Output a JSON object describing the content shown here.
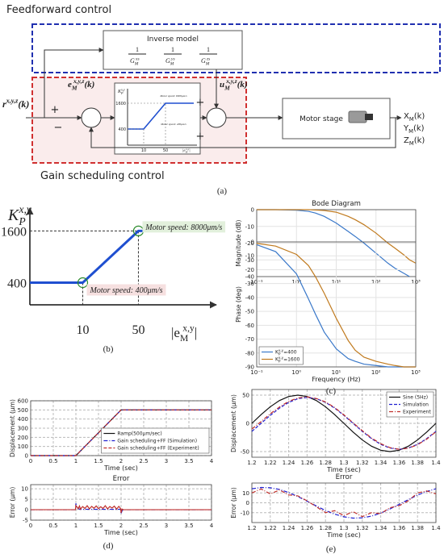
{
  "figure": {
    "panel_labels": [
      "(a)",
      "(b)",
      "(c)",
      "(d)",
      "(e)"
    ]
  },
  "diagram": {
    "feedforward": "Feedforward control",
    "inverse_model": "Inverse model",
    "inverse_terms": [
      {
        "num": "1",
        "base": "G",
        "sub": "M",
        "sup": "xs"
      },
      {
        "num": "1",
        "base": "G",
        "sub": "M",
        "sup": "ys"
      },
      {
        "num": "1",
        "base": "G",
        "sub": "M",
        "sup": "zs"
      }
    ],
    "gain_scheduling": "Gain scheduling control",
    "input": {
      "base": "r",
      "sup": "x,y,z",
      "tail": "(k)"
    },
    "error": {
      "base": "e",
      "sub": "M",
      "sup": "x,y,z",
      "tail": "(k)"
    },
    "control": {
      "base": "u",
      "sub": "M",
      "sup": "x,y,z",
      "tail": "(k)"
    },
    "signs": [
      "+",
      "−",
      "+",
      "+"
    ],
    "inset": {
      "ylabel": {
        "base": "K",
        "sub": "P",
        "sup": "x,y"
      },
      "yticks": [
        "1600",
        "400"
      ],
      "xticks": [
        "10",
        "50"
      ],
      "xlabel": {
        "base": "|e",
        "sub": "M",
        "sup": "x,y",
        "tail": "|"
      },
      "notes": [
        "Motor speed: 8000μm/s",
        "Motor speed: 400μm/s"
      ]
    },
    "plant": "Motor stage",
    "outputs": [
      {
        "base": "X",
        "sub": "M",
        "tail": "(k)"
      },
      {
        "base": "Y",
        "sub": "M",
        "tail": "(k)"
      },
      {
        "base": "Z",
        "sub": "M",
        "tail": "(k)"
      }
    ]
  },
  "chart_data": [
    {
      "type": "line",
      "frame": false,
      "color": "#1f4fd0",
      "x": [
        -28,
        10,
        50,
        75
      ],
      "values": [
        400,
        400,
        1600,
        1600
      ],
      "xlim": [
        -28,
        106
      ],
      "ylim": [
        -114,
        2130
      ],
      "xticks": [
        10,
        50
      ],
      "yticks": [
        400,
        1600
      ],
      "xlabel": {
        "base": "|e",
        "sub": "M",
        "sup": "x,y",
        "tail": "|"
      },
      "ylabel": {
        "base": "K",
        "sub": "P",
        "sup": "x,y"
      },
      "annotations": [
        {
          "text": "Motor speed: 8000μm/s",
          "x": 50,
          "y": 1600,
          "color": "#e2f0dc"
        },
        {
          "text": "Motor speed: 400μm/s",
          "x": 10,
          "y": 400,
          "color": "#f6e0e0"
        }
      ]
    },
    {
      "type": "line",
      "title": "Bode Diagram",
      "ylabel": "Magnitude (dB)",
      "xlog": true,
      "grid": true,
      "grid_style": "solid",
      "x": [
        0.1,
        0.3,
        1,
        2,
        3,
        5,
        10,
        20,
        30,
        50,
        100,
        200,
        300,
        500,
        700,
        1000
      ],
      "xlim": [
        0.1,
        1000
      ],
      "ylim": [
        -40,
        0
      ],
      "yticks": [
        -40,
        -30,
        -20,
        -10,
        0
      ],
      "xticks": [
        {
          "value": 0.1,
          "label": "10⁻¹"
        },
        {
          "value": 1,
          "label": "10⁰"
        },
        {
          "value": 10,
          "label": "10¹"
        },
        {
          "value": 100,
          "label": "10²"
        },
        {
          "value": 1000,
          "label": "10³"
        }
      ],
      "series": [
        {
          "name": {
            "base": "K",
            "sub": "P",
            "sup": "x,y",
            "tail": "=400"
          },
          "color": "#3a78c9",
          "style": "solid",
          "values": [
            0,
            0,
            -0.3,
            -1,
            -2,
            -4,
            -8,
            -13,
            -16,
            -20,
            -26,
            -32,
            -35,
            -38,
            -40,
            null
          ]
        },
        {
          "name": {
            "base": "K",
            "sub": "P",
            "sup": "x,y",
            "tail": "=1600"
          },
          "color": "#c07a1e",
          "style": "solid",
          "values": [
            0,
            0,
            0,
            0,
            -0.2,
            -0.5,
            -1.5,
            -4,
            -6,
            -9,
            -14,
            -20,
            -23,
            -27,
            -30,
            -32
          ]
        }
      ]
    },
    {
      "type": "line",
      "ylabel": "Phase (deg)",
      "xlabel": "Frequency  (Hz)",
      "xlog": true,
      "grid": true,
      "grid_style": "solid",
      "legend": "lower left",
      "x": [
        0.1,
        0.3,
        1,
        2,
        3,
        5,
        10,
        20,
        30,
        50,
        100,
        200,
        300,
        500,
        700,
        1000
      ],
      "xlim": [
        0.1,
        1000
      ],
      "ylim": [
        -90,
        0
      ],
      "yticks": [
        -90,
        -80,
        -70,
        -60,
        -50,
        -40,
        -30,
        -20,
        -10,
        0
      ],
      "xticks": [
        {
          "value": 0.1,
          "label": "10⁻¹"
        },
        {
          "value": 1,
          "label": "10⁰"
        },
        {
          "value": 10,
          "label": "10¹"
        },
        {
          "value": 100,
          "label": "10²"
        },
        {
          "value": 1000,
          "label": "10³"
        }
      ],
      "series": [
        {
          "name": {
            "base": "K",
            "sub": "P",
            "sup": "x,y",
            "tail": "=400"
          },
          "color": "#3a78c9",
          "style": "solid",
          "values": [
            -2,
            -7,
            -23,
            -41,
            -52,
            -65,
            -77,
            -84,
            -86,
            -88,
            -89,
            -90,
            -90,
            -90,
            -90,
            -90
          ]
        },
        {
          "name": {
            "base": "K",
            "sub": "P",
            "sup": "x,y",
            "tail": "=1600"
          },
          "color": "#c07a1e",
          "style": "solid",
          "values": [
            -1,
            -3,
            -9,
            -17,
            -25,
            -37,
            -55,
            -71,
            -78,
            -83,
            -86,
            -88,
            -89,
            -90,
            -90,
            -90
          ]
        }
      ]
    },
    {
      "type": "line",
      "ylabel": "Displacement (μm)",
      "xlabel": "Time (sec)",
      "grid": true,
      "grid_style": "dashed",
      "legend": "lower right",
      "x": [
        0,
        1,
        2,
        4
      ],
      "xlim": [
        0,
        4
      ],
      "ylim": [
        0,
        600
      ],
      "xticks": [
        0,
        0.5,
        1,
        1.5,
        2,
        2.5,
        3,
        3.5,
        4
      ],
      "yticks": [
        0,
        100,
        200,
        300,
        400,
        500,
        600
      ],
      "series": [
        {
          "name": "Ramp(500μm/sec)",
          "color": "#111111",
          "style": "solid",
          "values": [
            0,
            0,
            500,
            500
          ]
        },
        {
          "name": "Gain scheduling+FF (Simulation)",
          "color": "#2020d0",
          "style": "dashdot",
          "values": [
            0,
            0,
            500,
            500
          ]
        },
        {
          "name": "Gain scheduling+FF (Experiment)",
          "color": "#c0302c",
          "style": "dashed",
          "values": [
            0,
            0,
            500,
            500
          ]
        }
      ]
    },
    {
      "type": "line",
      "title": "Error",
      "ylabel": "Error (μm)",
      "xlabel": "Time (sec)",
      "grid": true,
      "grid_style": "dashed",
      "x": [
        0,
        0.99,
        1,
        1.02,
        1.05,
        1.08,
        1.1,
        1.15,
        1.2,
        1.25,
        1.3,
        1.35,
        1.4,
        1.45,
        1.5,
        1.55,
        1.6,
        1.65,
        1.7,
        1.75,
        1.8,
        1.85,
        1.9,
        1.95,
        1.99,
        2,
        2.02,
        2.05,
        4
      ],
      "xlim": [
        0,
        4
      ],
      "ylim": [
        -5,
        12
      ],
      "xticks": [
        0,
        0.5,
        1,
        1.5,
        2,
        2.5,
        3,
        3.5,
        4
      ],
      "yticks": [
        -5,
        0,
        5,
        10
      ],
      "series": [
        {
          "name": "Gain scheduling+FF (Simulation)",
          "color": "#2020d0",
          "style": "dashdot",
          "values": [
            0,
            0,
            3,
            1,
            0.4,
            0.3,
            0.2,
            0.2,
            0.2,
            0.2,
            0.2,
            0.2,
            0.2,
            0.2,
            0.2,
            0.2,
            0.2,
            0.2,
            0.2,
            0.2,
            0.2,
            0.2,
            0.2,
            0.2,
            0.2,
            -2,
            -0.5,
            0,
            0
          ]
        },
        {
          "name": "Gain scheduling+FF (Experiment)",
          "color": "#c0302c",
          "style": "solid",
          "values": [
            0,
            0,
            2,
            1.5,
            0.5,
            1.8,
            0.3,
            1.5,
            0.6,
            1.9,
            0.4,
            1.6,
            0.7,
            1.8,
            0.5,
            1.4,
            0.6,
            1.9,
            0.4,
            1.5,
            0.8,
            1.7,
            0.3,
            1.6,
            0.5,
            -1.5,
            0.3,
            0,
            0
          ]
        }
      ]
    },
    {
      "type": "line",
      "ylabel": "Displacement (μm)",
      "xlabel": "Time (sec)",
      "grid": true,
      "grid_style": "dashed",
      "legend": "upper right",
      "x": [
        1.2,
        1.21,
        1.22,
        1.23,
        1.24,
        1.25,
        1.26,
        1.27,
        1.28,
        1.29,
        1.3,
        1.31,
        1.32,
        1.33,
        1.34,
        1.35,
        1.36,
        1.37,
        1.38,
        1.39,
        1.4
      ],
      "xlim": [
        1.2,
        1.4
      ],
      "ylim": [
        -60,
        60
      ],
      "xticks": [
        1.2,
        1.22,
        1.24,
        1.26,
        1.28,
        1.3,
        1.32,
        1.34,
        1.36,
        1.38,
        1.4
      ],
      "yticks": [
        -50,
        0,
        50
      ],
      "series": [
        {
          "name": "Sine (5Hz)",
          "color": "#111111",
          "style": "solid",
          "values": [
            0,
            15.5,
            29.4,
            40.5,
            47.6,
            50,
            47.6,
            40.5,
            29.4,
            15.5,
            0,
            -15.5,
            -29.4,
            -40.5,
            -47.6,
            -50,
            -47.6,
            -40.5,
            -29.4,
            -15.5,
            0
          ]
        },
        {
          "name": "Simulation",
          "color": "#2020d0",
          "style": "dashed",
          "values": [
            -14.2,
            0,
            14.2,
            27,
            37.2,
            43.7,
            46,
            43.7,
            37.2,
            27,
            14.2,
            0,
            -14.2,
            -27,
            -37.2,
            -43.7,
            -46,
            -43.7,
            -37.2,
            -27,
            -14.2
          ]
        },
        {
          "name": "Experiment",
          "color": "#c0302c",
          "style": "dashdot",
          "values": [
            -10,
            3,
            17,
            29,
            39,
            45,
            47,
            44,
            38,
            28,
            15,
            1,
            -13,
            -26,
            -36,
            -43,
            -46,
            -44,
            -38,
            -28,
            -15
          ]
        }
      ]
    },
    {
      "type": "line",
      "title": "Error",
      "ylabel": "Error (μm)",
      "xlabel": "Time (sec)",
      "grid": true,
      "grid_style": "dashed",
      "x": [
        1.2,
        1.21,
        1.22,
        1.23,
        1.24,
        1.25,
        1.26,
        1.27,
        1.28,
        1.29,
        1.3,
        1.31,
        1.32,
        1.33,
        1.34,
        1.35,
        1.36,
        1.37,
        1.38,
        1.39,
        1.4
      ],
      "xlim": [
        1.2,
        1.4
      ],
      "ylim": [
        -20,
        20
      ],
      "xticks": [
        1.2,
        1.22,
        1.24,
        1.26,
        1.28,
        1.3,
        1.32,
        1.34,
        1.36,
        1.38,
        1.4
      ],
      "yticks": [
        -10,
        0,
        10
      ],
      "series": [
        {
          "name": "Simulation",
          "color": "#2020d0",
          "style": "dashdot",
          "values": [
            14.2,
            15.5,
            15.2,
            13.5,
            10.4,
            6.3,
            1.6,
            -3.2,
            -7.8,
            -11.5,
            -14.2,
            -15.5,
            -15.2,
            -13.5,
            -10.4,
            -6.3,
            -1.6,
            3.2,
            7.8,
            11.5,
            14.2
          ]
        },
        {
          "name": "Experiment",
          "color": "#c0302c",
          "style": "dashdot",
          "values": [
            10,
            14,
            9,
            13,
            8,
            7,
            2,
            -4,
            -10,
            -8,
            -13,
            -9,
            -14,
            -10,
            -11,
            -5,
            -3,
            2,
            10,
            12,
            9
          ]
        }
      ]
    }
  ]
}
